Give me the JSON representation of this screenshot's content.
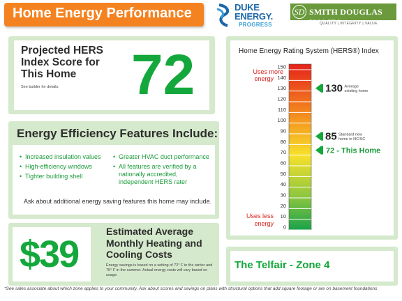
{
  "header": {
    "title": "Home Energy Performance"
  },
  "logos": {
    "duke": {
      "line1": "DUKE",
      "line2": "ENERGY.",
      "line3": "PROGRESS"
    },
    "smith_douglas": {
      "mark": "SD",
      "name": "SMITH DOUGLAS HOMES",
      "tagline": "QUALITY | INTEGRITY | VALUE"
    }
  },
  "hers_panel": {
    "title": "Projected HERS Index Score for This Home",
    "subtitle": "See builder for details.",
    "score": "72"
  },
  "features_panel": {
    "title": "Energy Efficiency Features Include:",
    "bullet": "•",
    "left_items": [
      "Increased insulation values",
      "High-efficiency windows",
      "Tighter building shell"
    ],
    "right_items": [
      "Greater HVAC duct performance",
      "All features are verified by a nationally accredited, independent HERS rater"
    ],
    "ask": "Ask about additional energy saving features this home may include."
  },
  "cost_panel": {
    "amount": "$39",
    "title": "Estimated Average Monthly Heating and Cooling Costs",
    "description": "Energy savings is based on a setting of 72° F in the winter and 75° F in the summer. Actual energy costs will vary based on usage."
  },
  "rating_panel": {
    "title": "Home Energy Rating System (HERS®) Index",
    "uses_more": [
      "Uses more",
      "energy"
    ],
    "uses_less": [
      "Uses less",
      "energy"
    ],
    "scale_min": 0,
    "scale_max": 150,
    "scale_step": 10,
    "markers": [
      {
        "value": 130,
        "big": "130",
        "small": [
          "Average",
          "existing home"
        ],
        "color": "#14a83c"
      },
      {
        "value": 85,
        "big": "85",
        "small": [
          "Standard new",
          "home in NC/SC"
        ],
        "color": "#14a83c"
      },
      {
        "value": 72,
        "home": "72 - This Home",
        "color": "#14a83c"
      }
    ],
    "colors": {
      "top": "#e5231b",
      "upper": "#f48a1f",
      "middle": "#f7e12a",
      "lower": "#8cc63f",
      "bottom": "#1aa24a"
    }
  },
  "name_panel": {
    "text": "The Telfair - Zone 4"
  },
  "footnote": "*See sales associate about which zone applies to your community.  Ask about scores and savings on plans with structural options that add square footage or are on basement foundations"
}
